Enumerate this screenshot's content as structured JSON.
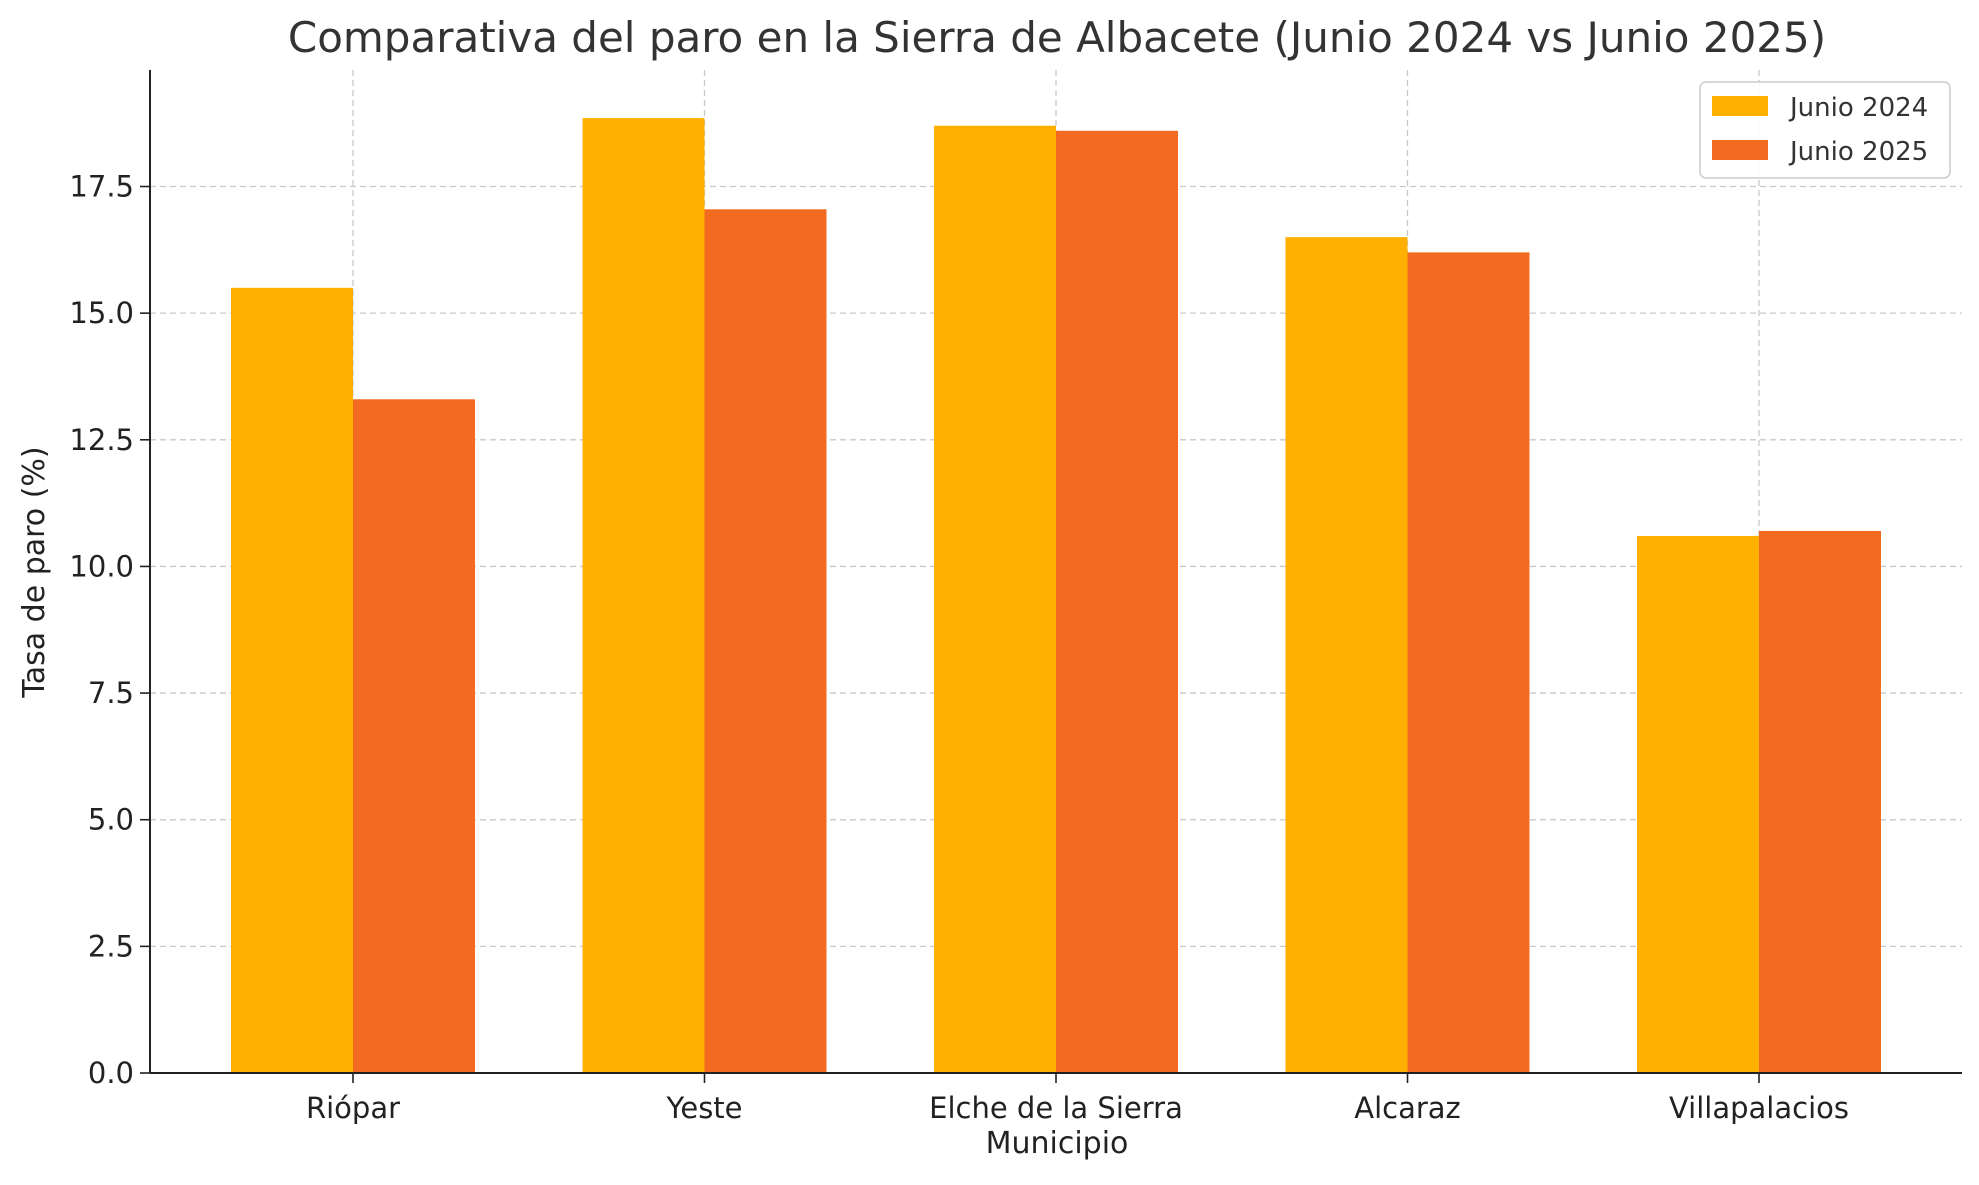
{
  "chart_data": {
    "type": "bar",
    "title": "Comparativa del paro en la Sierra de Albacete (Junio 2024 vs Junio 2025)",
    "xlabel": "Municipio",
    "ylabel": "Tasa de paro (%)",
    "categories": [
      "Riópar",
      "Yeste",
      "Elche de la Sierra",
      "Alcaraz",
      "Villapalacios"
    ],
    "series": [
      {
        "name": "Junio 2024",
        "color": "#FFB000",
        "values": [
          15.5,
          18.85,
          18.7,
          16.5,
          10.6
        ]
      },
      {
        "name": "Junio 2025",
        "color": "#F26B21",
        "values": [
          13.3,
          17.05,
          18.6,
          16.2,
          10.7
        ]
      }
    ],
    "ylim": [
      0,
      19.8
    ],
    "yticks": [
      "0.0",
      "2.5",
      "5.0",
      "7.5",
      "10.0",
      "12.5",
      "15.0",
      "17.5"
    ],
    "grid": true,
    "legend_position": "top-right"
  }
}
